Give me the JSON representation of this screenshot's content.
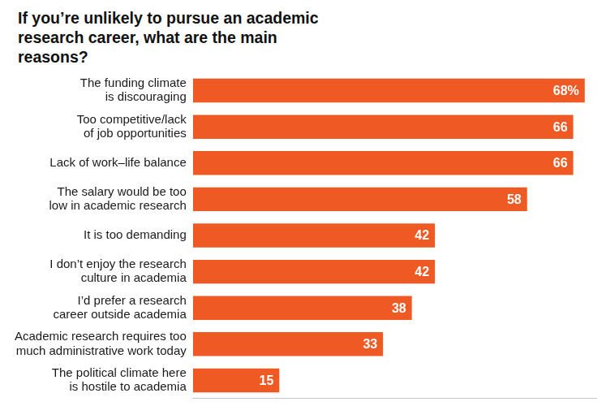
{
  "chart_data": {
    "type": "bar",
    "title": "If you’re unlikely to pursue an academic research career, what are the main reasons?",
    "orientation": "horizontal",
    "categories": [
      "The funding climate is discouraging",
      "Too competitive/lack of job opportunities",
      "Lack of work–life balance",
      "The salary would be too low in academic research",
      "It is too demanding",
      "I don’t enjoy the research culture in academia",
      "I’d prefer a research career outside academia",
      "Academic research requires too much administrative work today",
      "The political climate here is hostile to academia"
    ],
    "values": [
      68,
      66,
      66,
      58,
      42,
      42,
      38,
      33,
      15
    ],
    "value_labels": [
      "68%",
      "66",
      "66",
      "58",
      "42",
      "42",
      "38",
      "33",
      "15"
    ],
    "data_labels": true,
    "color": "#ef5a24",
    "xlim": [
      0,
      70
    ],
    "tick_labels": "y",
    "grid": false
  }
}
